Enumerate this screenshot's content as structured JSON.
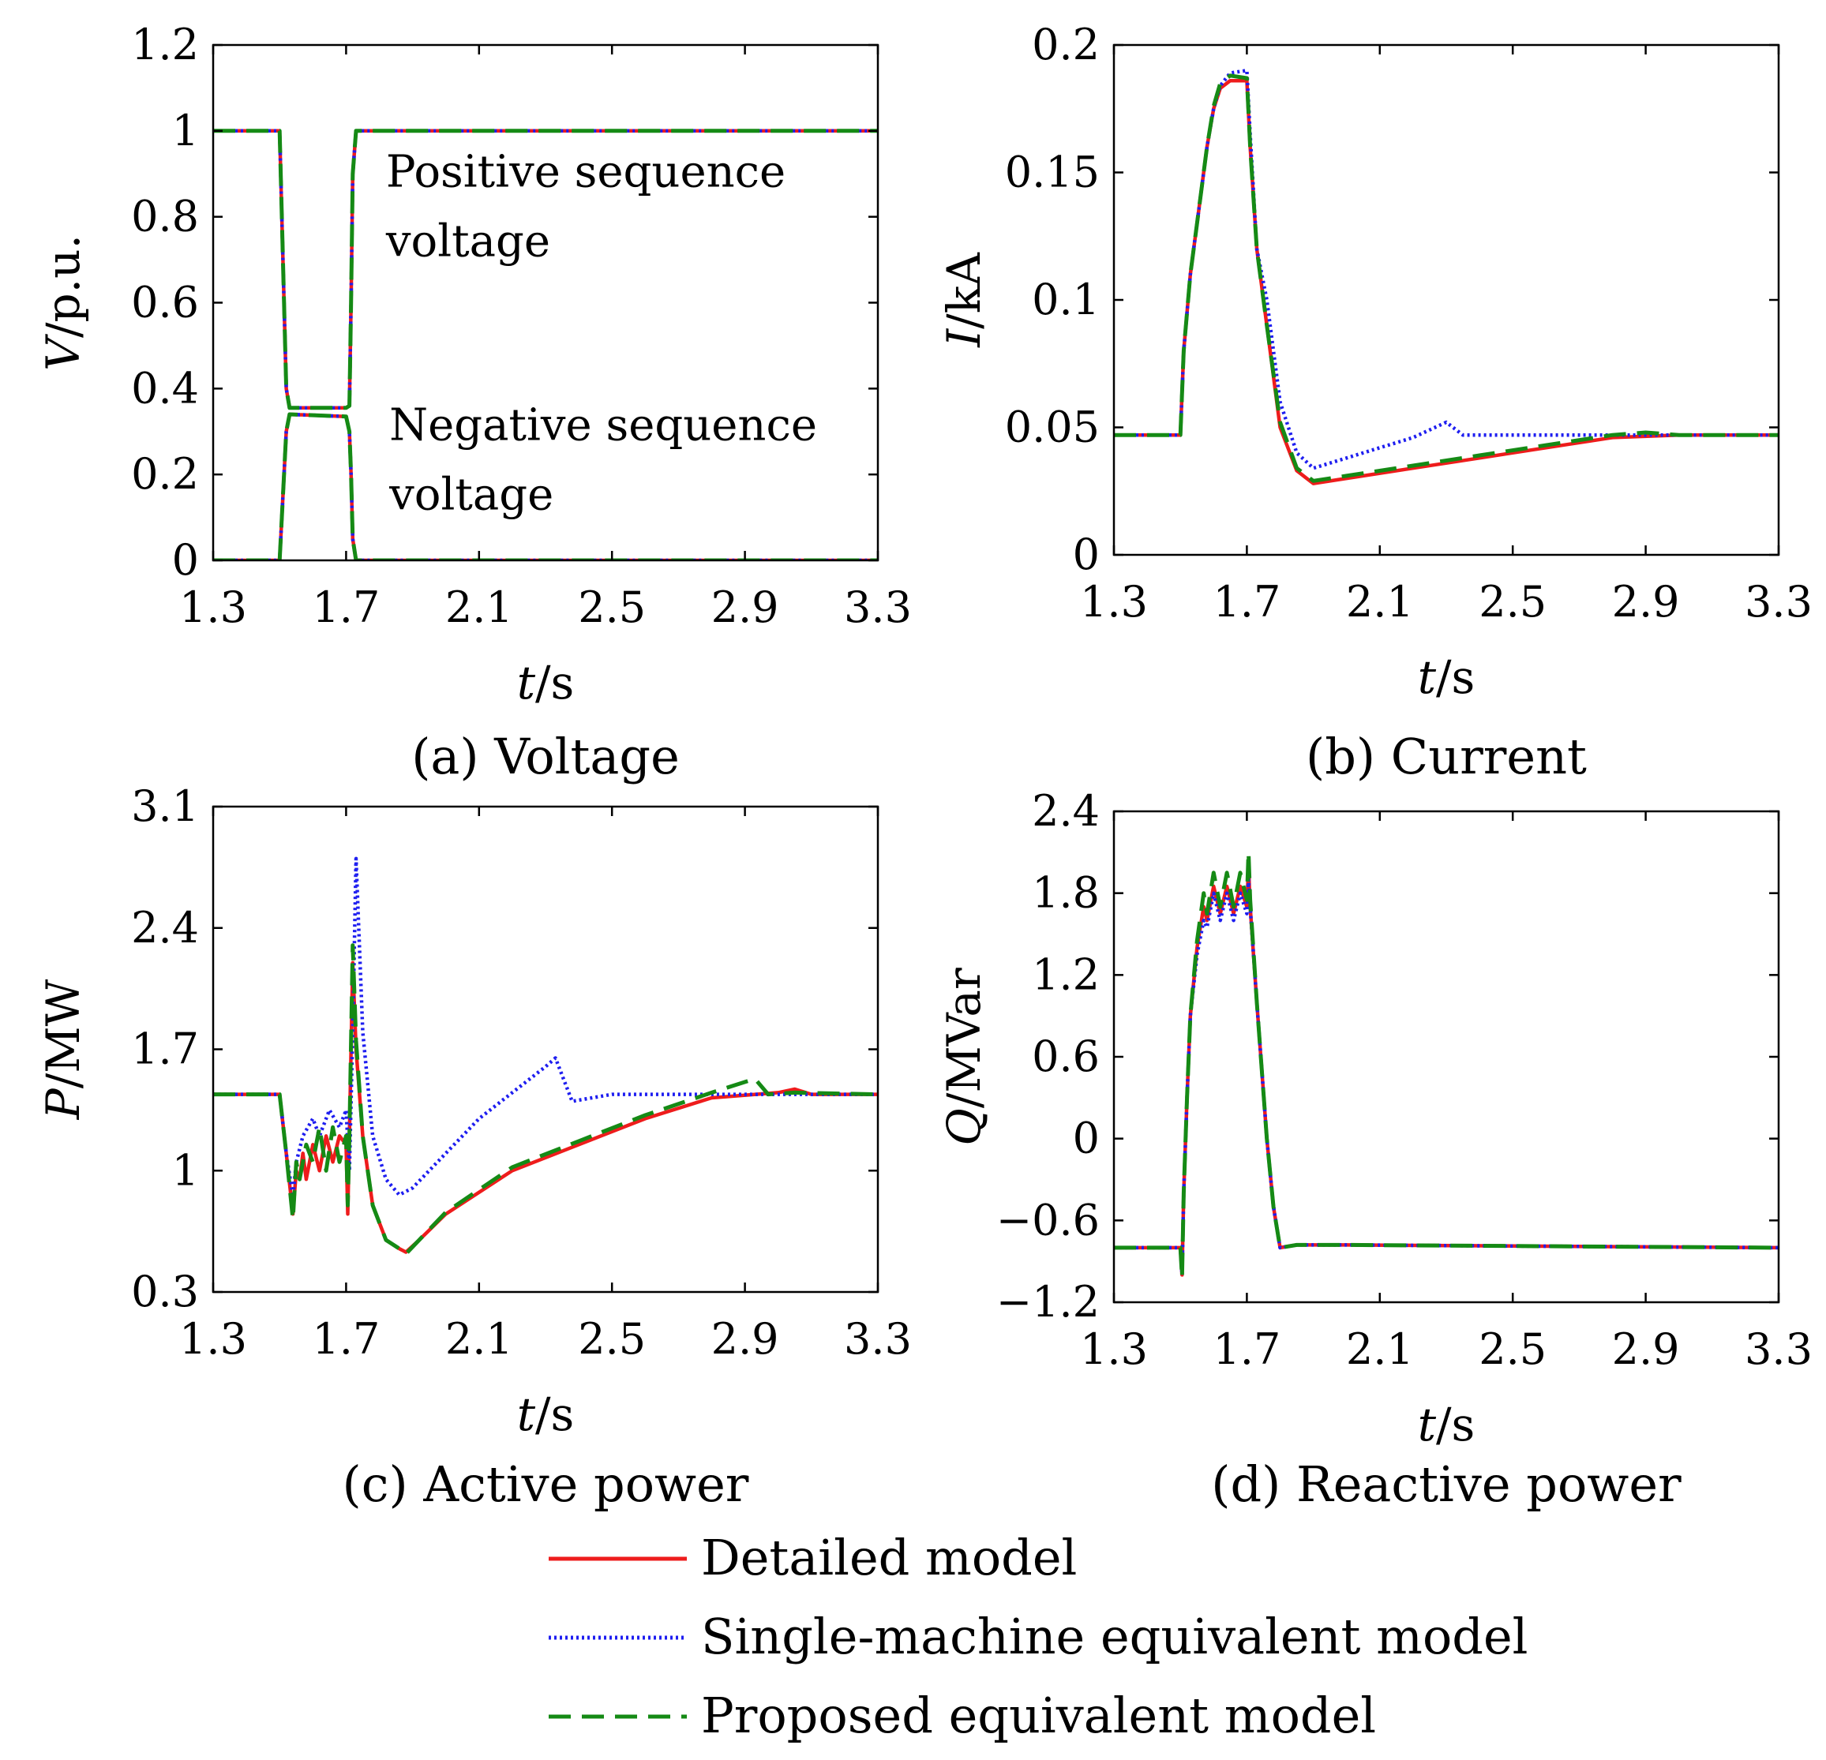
{
  "legend": [
    {
      "label": "Detailed model",
      "color": "#ee1c1c",
      "dash": ""
    },
    {
      "label": "Single-machine equivalent model",
      "color": "#1e1ef0",
      "dash": "3 4"
    },
    {
      "label": "Proposed equivalent model",
      "color": "#158a15",
      "dash": "28 14"
    }
  ],
  "chart_data": [
    {
      "type": "line",
      "caption": "(a) Voltage",
      "xlabel_italic": "t",
      "xlabel_unit": "/s",
      "ylabel_italic": "V",
      "ylabel_unit": "/p.u.",
      "xlim": [
        1.3,
        3.3
      ],
      "ylim": [
        0,
        1.2
      ],
      "xticks": [
        "1.3",
        "1.7",
        "2.1",
        "2.5",
        "2.9",
        "3.3"
      ],
      "yticks": [
        "0",
        "0.2",
        "0.4",
        "0.6",
        "0.8",
        "1",
        "1.2"
      ],
      "annotations": [
        {
          "lines": [
            "Positive sequence",
            "voltage"
          ],
          "at": [
            1.82,
            0.87
          ]
        },
        {
          "lines": [
            "Negative sequence",
            "voltage"
          ],
          "at": [
            1.83,
            0.28
          ]
        }
      ],
      "series": [
        {
          "legend_index": 0,
          "x": [
            1.3,
            1.5,
            1.51,
            1.52,
            1.53,
            1.7,
            1.71,
            1.715,
            1.72,
            1.73,
            3.3
          ],
          "y": [
            1.0,
            1.0,
            0.7,
            0.4,
            0.355,
            0.355,
            0.36,
            0.6,
            0.9,
            1.0,
            1.0
          ]
        },
        {
          "legend_index": 1,
          "x": [
            1.3,
            1.5,
            1.51,
            1.52,
            1.53,
            1.7,
            1.71,
            1.715,
            1.72,
            1.73,
            3.3
          ],
          "y": [
            1.0,
            1.0,
            0.7,
            0.4,
            0.355,
            0.355,
            0.36,
            0.6,
            0.9,
            1.0,
            1.0
          ]
        },
        {
          "legend_index": 2,
          "x": [
            1.3,
            1.5,
            1.51,
            1.52,
            1.53,
            1.7,
            1.71,
            1.715,
            1.72,
            1.73,
            3.3
          ],
          "y": [
            1.0,
            1.0,
            0.7,
            0.4,
            0.355,
            0.355,
            0.36,
            0.6,
            0.9,
            1.0,
            1.0
          ]
        },
        {
          "legend_index": 0,
          "x": [
            1.3,
            1.5,
            1.51,
            1.52,
            1.53,
            1.7,
            1.71,
            1.715,
            1.72,
            1.73,
            3.3
          ],
          "y": [
            0.0,
            0.0,
            0.15,
            0.3,
            0.34,
            0.335,
            0.3,
            0.2,
            0.05,
            0.0,
            0.0
          ]
        },
        {
          "legend_index": 1,
          "x": [
            1.3,
            1.5,
            1.51,
            1.52,
            1.53,
            1.7,
            1.71,
            1.715,
            1.72,
            1.73,
            3.3
          ],
          "y": [
            0.0,
            0.0,
            0.15,
            0.3,
            0.34,
            0.335,
            0.3,
            0.2,
            0.05,
            0.0,
            0.0
          ]
        },
        {
          "legend_index": 2,
          "x": [
            1.3,
            1.5,
            1.51,
            1.52,
            1.53,
            1.7,
            1.71,
            1.715,
            1.72,
            1.73,
            3.3
          ],
          "y": [
            0.0,
            0.0,
            0.15,
            0.3,
            0.34,
            0.335,
            0.3,
            0.2,
            0.05,
            0.0,
            0.0
          ]
        }
      ]
    },
    {
      "type": "line",
      "caption": "(b) Current",
      "xlabel_italic": "t",
      "xlabel_unit": "/s",
      "ylabel_italic": "I",
      "ylabel_unit": "/kA",
      "xlim": [
        1.3,
        3.3
      ],
      "ylim": [
        0,
        0.2
      ],
      "xticks": [
        "1.3",
        "1.7",
        "2.1",
        "2.5",
        "2.9",
        "3.3"
      ],
      "yticks": [
        "0",
        "0.05",
        "0.1",
        "0.15",
        "0.2"
      ],
      "annotations": [],
      "series": [
        {
          "legend_index": 0,
          "x": [
            1.3,
            1.5,
            1.51,
            1.53,
            1.55,
            1.58,
            1.6,
            1.62,
            1.65,
            1.7,
            1.71,
            1.73,
            1.76,
            1.8,
            1.85,
            1.9,
            2.0,
            2.2,
            2.4,
            2.6,
            2.8,
            3.0,
            3.3
          ],
          "y": [
            0.047,
            0.047,
            0.08,
            0.11,
            0.13,
            0.16,
            0.175,
            0.183,
            0.186,
            0.186,
            0.16,
            0.12,
            0.09,
            0.05,
            0.033,
            0.028,
            0.03,
            0.034,
            0.038,
            0.042,
            0.046,
            0.047,
            0.047
          ]
        },
        {
          "legend_index": 1,
          "x": [
            1.3,
            1.5,
            1.51,
            1.53,
            1.55,
            1.58,
            1.6,
            1.62,
            1.65,
            1.7,
            1.71,
            1.73,
            1.76,
            1.8,
            1.85,
            1.9,
            2.0,
            2.1,
            2.2,
            2.3,
            2.35,
            2.4,
            2.6,
            2.8,
            3.0,
            3.3
          ],
          "y": [
            0.047,
            0.047,
            0.08,
            0.11,
            0.13,
            0.16,
            0.175,
            0.184,
            0.189,
            0.19,
            0.165,
            0.12,
            0.1,
            0.06,
            0.04,
            0.034,
            0.038,
            0.042,
            0.046,
            0.052,
            0.047,
            0.047,
            0.047,
            0.047,
            0.047,
            0.047
          ]
        },
        {
          "legend_index": 2,
          "x": [
            1.3,
            1.5,
            1.51,
            1.53,
            1.55,
            1.58,
            1.6,
            1.62,
            1.65,
            1.7,
            1.71,
            1.73,
            1.76,
            1.8,
            1.85,
            1.9,
            2.0,
            2.2,
            2.4,
            2.6,
            2.8,
            2.9,
            3.0,
            3.3
          ],
          "y": [
            0.047,
            0.047,
            0.08,
            0.11,
            0.13,
            0.16,
            0.176,
            0.185,
            0.188,
            0.187,
            0.16,
            0.12,
            0.09,
            0.052,
            0.034,
            0.029,
            0.031,
            0.035,
            0.039,
            0.043,
            0.047,
            0.048,
            0.047,
            0.047
          ]
        }
      ]
    },
    {
      "type": "line",
      "caption": "(c) Active power",
      "xlabel_italic": "t",
      "xlabel_unit": "/s",
      "ylabel_italic": "P",
      "ylabel_unit": "/MW",
      "xlim": [
        1.3,
        3.3
      ],
      "ylim": [
        0.3,
        3.1
      ],
      "xticks": [
        "1.3",
        "1.7",
        "2.1",
        "2.5",
        "2.9",
        "3.3"
      ],
      "yticks": [
        "0.3",
        "1",
        "1.7",
        "2.4",
        "3.1"
      ],
      "annotations": [],
      "series": [
        {
          "legend_index": 0,
          "x": [
            1.3,
            1.5,
            1.52,
            1.54,
            1.55,
            1.56,
            1.57,
            1.58,
            1.6,
            1.62,
            1.64,
            1.66,
            1.68,
            1.7,
            1.705,
            1.71,
            1.72,
            1.73,
            1.75,
            1.78,
            1.82,
            1.86,
            1.88,
            1.92,
            2.0,
            2.2,
            2.4,
            2.6,
            2.8,
            3.0,
            3.05,
            3.1,
            3.3
          ],
          "y": [
            1.44,
            1.44,
            1.1,
            0.75,
            1.0,
            0.95,
            1.1,
            0.95,
            1.15,
            1.0,
            1.2,
            1.05,
            1.2,
            1.15,
            0.75,
            1.2,
            2.2,
            1.7,
            1.2,
            0.8,
            0.6,
            0.55,
            0.53,
            0.6,
            0.75,
            1.0,
            1.15,
            1.3,
            1.42,
            1.45,
            1.47,
            1.44,
            1.44
          ]
        },
        {
          "legend_index": 1,
          "x": [
            1.3,
            1.5,
            1.52,
            1.54,
            1.55,
            1.57,
            1.6,
            1.62,
            1.65,
            1.68,
            1.7,
            1.71,
            1.72,
            1.73,
            1.75,
            1.78,
            1.82,
            1.86,
            1.9,
            2.0,
            2.1,
            2.2,
            2.3,
            2.33,
            2.38,
            2.5,
            2.8,
            3.3
          ],
          "y": [
            1.44,
            1.44,
            1.1,
            0.85,
            1.05,
            1.2,
            1.3,
            1.2,
            1.35,
            1.25,
            1.35,
            1.0,
            1.8,
            2.8,
            1.8,
            1.2,
            0.95,
            0.86,
            0.9,
            1.1,
            1.3,
            1.45,
            1.6,
            1.65,
            1.4,
            1.44,
            1.44,
            1.44
          ]
        },
        {
          "legend_index": 2,
          "x": [
            1.3,
            1.5,
            1.52,
            1.54,
            1.55,
            1.56,
            1.58,
            1.6,
            1.62,
            1.64,
            1.66,
            1.68,
            1.7,
            1.705,
            1.71,
            1.72,
            1.73,
            1.75,
            1.78,
            1.82,
            1.86,
            1.88,
            1.92,
            2.0,
            2.2,
            2.4,
            2.6,
            2.8,
            2.93,
            2.97,
            3.05,
            3.3
          ],
          "y": [
            1.44,
            1.44,
            1.1,
            0.72,
            1.05,
            0.95,
            1.15,
            1.05,
            1.25,
            1.0,
            1.25,
            1.05,
            1.2,
            0.8,
            1.2,
            2.3,
            1.75,
            1.2,
            0.8,
            0.6,
            0.55,
            0.52,
            0.6,
            0.76,
            1.02,
            1.17,
            1.32,
            1.45,
            1.53,
            1.44,
            1.45,
            1.44
          ]
        }
      ]
    },
    {
      "type": "line",
      "caption": "(d) Reactive power",
      "xlabel_italic": "t",
      "xlabel_unit": "/s",
      "ylabel_italic": "Q",
      "ylabel_unit": "/MVar",
      "xlim": [
        1.3,
        3.3
      ],
      "ylim": [
        -1.2,
        2.4
      ],
      "xticks": [
        "1.3",
        "1.7",
        "2.1",
        "2.5",
        "2.9",
        "3.3"
      ],
      "yticks": [
        "−1.2",
        "−0.6",
        "0",
        "0.6",
        "1.2",
        "1.8",
        "2.4"
      ],
      "annotations": [],
      "series": [
        {
          "legend_index": 0,
          "x": [
            1.3,
            1.5,
            1.505,
            1.51,
            1.52,
            1.53,
            1.55,
            1.57,
            1.58,
            1.6,
            1.62,
            1.64,
            1.66,
            1.68,
            1.7,
            1.705,
            1.71,
            1.73,
            1.76,
            1.78,
            1.8,
            1.85,
            2.0,
            3.3
          ],
          "y": [
            -0.8,
            -0.8,
            -1.0,
            -0.4,
            0.3,
            0.9,
            1.4,
            1.7,
            1.6,
            1.85,
            1.65,
            1.85,
            1.65,
            1.85,
            1.7,
            2.0,
            1.7,
            1.0,
            0.0,
            -0.5,
            -0.8,
            -0.78,
            -0.78,
            -0.8
          ]
        },
        {
          "legend_index": 1,
          "x": [
            1.3,
            1.5,
            1.505,
            1.51,
            1.52,
            1.53,
            1.55,
            1.57,
            1.58,
            1.6,
            1.62,
            1.64,
            1.66,
            1.68,
            1.7,
            1.705,
            1.71,
            1.73,
            1.76,
            1.78,
            1.8,
            1.85,
            2.0,
            3.3
          ],
          "y": [
            -0.8,
            -0.8,
            -1.0,
            -0.4,
            0.3,
            0.9,
            1.35,
            1.6,
            1.55,
            1.8,
            1.6,
            1.8,
            1.6,
            1.8,
            1.65,
            1.9,
            1.7,
            1.0,
            0.0,
            -0.5,
            -0.8,
            -0.78,
            -0.78,
            -0.8
          ]
        },
        {
          "legend_index": 2,
          "x": [
            1.3,
            1.5,
            1.505,
            1.51,
            1.52,
            1.53,
            1.55,
            1.57,
            1.58,
            1.6,
            1.62,
            1.64,
            1.66,
            1.68,
            1.7,
            1.705,
            1.71,
            1.73,
            1.76,
            1.78,
            1.8,
            1.85,
            2.0,
            3.3
          ],
          "y": [
            -0.8,
            -0.8,
            -1.02,
            -0.4,
            0.3,
            0.9,
            1.45,
            1.8,
            1.65,
            1.95,
            1.7,
            1.95,
            1.7,
            1.95,
            1.75,
            2.1,
            1.75,
            1.0,
            0.0,
            -0.5,
            -0.8,
            -0.78,
            -0.78,
            -0.8
          ]
        }
      ]
    }
  ]
}
